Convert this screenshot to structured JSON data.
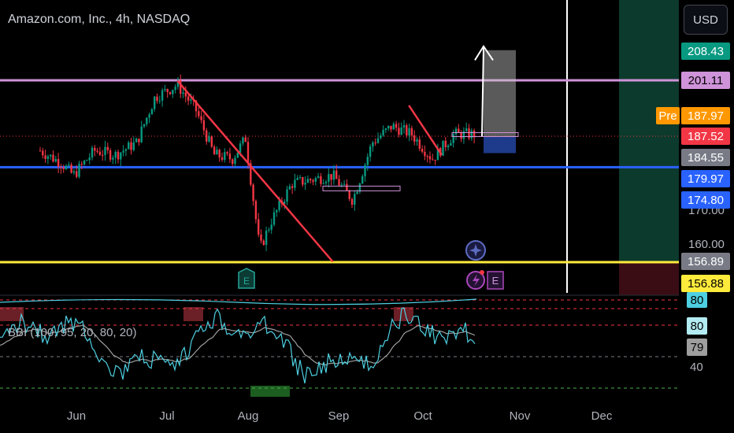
{
  "header": {
    "title": "Amazon.com, Inc., 4h, NASDAQ"
  },
  "currency_button": "USD",
  "indicator_label": "BBI (100, 95, 20, 80, 20)",
  "price_tags": {
    "target": "208.43",
    "resistance": "201.11",
    "premarket_label": "Pre",
    "premarket": "187.97",
    "last": "187.52",
    "box_bottom": "184.55",
    "support": "179.97",
    "blue_level": "174.80",
    "yellow_a": "156.89",
    "yellow_b": "156.88"
  },
  "price_axis_labels": [
    "170.00",
    "160.00"
  ],
  "indicator_axis": {
    "top": "80",
    "upper": "80",
    "value": "79",
    "low": "40"
  },
  "chart_data": {
    "type": "candlestick",
    "title": "Amazon.com, Inc., 4h, NASDAQ",
    "x_tick_labels": [
      "Jun",
      "Jul",
      "Aug",
      "Sep",
      "Oct",
      "Nov",
      "Dec"
    ],
    "price_axis_ticks": [
      170,
      160
    ],
    "close_path": [
      {
        "date": "2024-05-20",
        "close": 184
      },
      {
        "date": "2024-05-27",
        "close": 181
      },
      {
        "date": "2024-05-31",
        "close": 178
      },
      {
        "date": "2024-06-07",
        "close": 184
      },
      {
        "date": "2024-06-14",
        "close": 183
      },
      {
        "date": "2024-06-21",
        "close": 186
      },
      {
        "date": "2024-06-27",
        "close": 197
      },
      {
        "date": "2024-07-05",
        "close": 200
      },
      {
        "date": "2024-07-12",
        "close": 194
      },
      {
        "date": "2024-07-19",
        "close": 183
      },
      {
        "date": "2024-07-26",
        "close": 182
      },
      {
        "date": "2024-07-31",
        "close": 187
      },
      {
        "date": "2024-08-05",
        "close": 160
      },
      {
        "date": "2024-08-09",
        "close": 167
      },
      {
        "date": "2024-08-16",
        "close": 176
      },
      {
        "date": "2024-08-23",
        "close": 177
      },
      {
        "date": "2024-08-30",
        "close": 178
      },
      {
        "date": "2024-09-06",
        "close": 172
      },
      {
        "date": "2024-09-13",
        "close": 186
      },
      {
        "date": "2024-09-20",
        "close": 190
      },
      {
        "date": "2024-09-27",
        "close": 188
      },
      {
        "date": "2024-10-04",
        "close": 182
      },
      {
        "date": "2024-10-11",
        "close": 188
      },
      {
        "date": "2024-10-18",
        "close": 188
      }
    ],
    "horizontal_levels": [
      {
        "price": 201.11,
        "color": "#ce93d8"
      },
      {
        "price": 179.97,
        "color": "#2962ff"
      },
      {
        "price": 156.89,
        "color": "#ffeb3b"
      }
    ],
    "trendlines": [
      {
        "from": {
          "date": "2024-07-05",
          "price": 201
        },
        "to": {
          "date": "2024-08-30",
          "price": 157
        },
        "color": "#f23645"
      },
      {
        "from": {
          "date": "2024-09-26",
          "price": 195
        },
        "to": {
          "date": "2024-10-07",
          "price": 183
        },
        "color": "#f23645"
      }
    ],
    "position_box": {
      "entry": 187.52,
      "target": 208.43,
      "stop": 184.55
    },
    "indicator": {
      "name": "BBI",
      "levels": [
        80,
        40
      ],
      "current": 79
    }
  }
}
